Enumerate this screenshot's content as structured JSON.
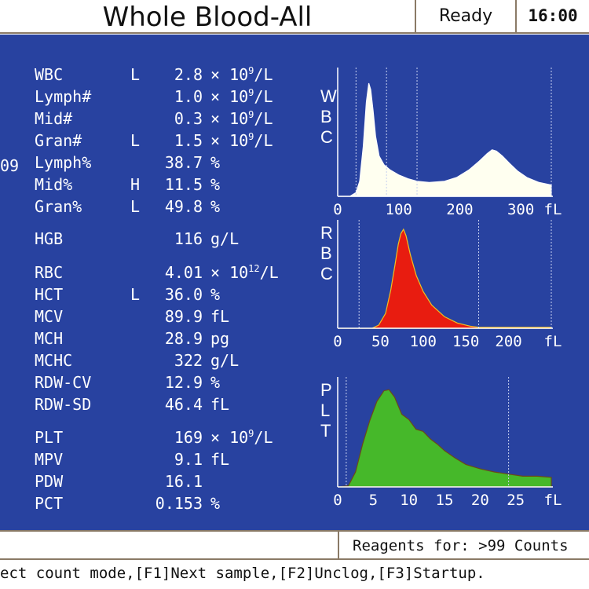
{
  "header": {
    "title": "Whole Blood-All",
    "status": "Ready",
    "time": "16:00"
  },
  "edge_text": "09",
  "parameters": [
    {
      "name": "WBC",
      "flag": "L",
      "value": "2.8",
      "unit_pre": "× 10",
      "unit_exp": "9",
      "unit_post": "/L"
    },
    {
      "name": "Lymph#",
      "flag": "",
      "value": "1.0",
      "unit_pre": "× 10",
      "unit_exp": "9",
      "unit_post": "/L"
    },
    {
      "name": "Mid#",
      "flag": "",
      "value": "0.3",
      "unit_pre": "× 10",
      "unit_exp": "9",
      "unit_post": "/L"
    },
    {
      "name": "Gran#",
      "flag": "L",
      "value": "1.5",
      "unit_pre": "× 10",
      "unit_exp": "9",
      "unit_post": "/L"
    },
    {
      "name": "Lymph%",
      "flag": "",
      "value": "38.7",
      "unit_pre": "%",
      "unit_exp": "",
      "unit_post": ""
    },
    {
      "name": "Mid%",
      "flag": "H",
      "value": "11.5",
      "unit_pre": "%",
      "unit_exp": "",
      "unit_post": ""
    },
    {
      "name": "Gran%",
      "flag": "L",
      "value": "49.8",
      "unit_pre": "%",
      "unit_exp": "",
      "unit_post": ""
    },
    {
      "name": "HGB",
      "flag": "",
      "value": "116",
      "unit_pre": "g/L",
      "unit_exp": "",
      "unit_post": ""
    },
    {
      "name": "RBC",
      "flag": "",
      "value": "4.01",
      "unit_pre": "× 10",
      "unit_exp": "12",
      "unit_post": "/L"
    },
    {
      "name": "HCT",
      "flag": "L",
      "value": "36.0",
      "unit_pre": "%",
      "unit_exp": "",
      "unit_post": ""
    },
    {
      "name": "MCV",
      "flag": "",
      "value": "89.9",
      "unit_pre": "fL",
      "unit_exp": "",
      "unit_post": ""
    },
    {
      "name": "MCH",
      "flag": "",
      "value": "28.9",
      "unit_pre": "pg",
      "unit_exp": "",
      "unit_post": ""
    },
    {
      "name": "MCHC",
      "flag": "",
      "value": "322",
      "unit_pre": "g/L",
      "unit_exp": "",
      "unit_post": ""
    },
    {
      "name": "RDW-CV",
      "flag": "",
      "value": "12.9",
      "unit_pre": "%",
      "unit_exp": "",
      "unit_post": ""
    },
    {
      "name": "RDW-SD",
      "flag": "",
      "value": "46.4",
      "unit_pre": "fL",
      "unit_exp": "",
      "unit_post": ""
    },
    {
      "name": "PLT",
      "flag": "",
      "value": "169",
      "unit_pre": "× 10",
      "unit_exp": "9",
      "unit_post": "/L"
    },
    {
      "name": "MPV",
      "flag": "",
      "value": "9.1",
      "unit_pre": "fL",
      "unit_exp": "",
      "unit_post": ""
    },
    {
      "name": "PDW",
      "flag": "",
      "value": "16.1",
      "unit_pre": "",
      "unit_exp": "",
      "unit_post": ""
    },
    {
      "name": "PCT",
      "flag": "",
      "value": "0.153",
      "unit_pre": "%",
      "unit_exp": "",
      "unit_post": ""
    }
  ],
  "histograms": [
    {
      "id": "wbc",
      "label": "WBC",
      "fill": "#fffff0",
      "stroke": "#ffffff",
      "xmax": 350,
      "ticks": [
        "0",
        "100",
        "200",
        "300"
      ],
      "tick_values": [
        0,
        100,
        200,
        300
      ],
      "unit": "fL",
      "markers": [
        30,
        80,
        130,
        350
      ],
      "curve": [
        [
          0,
          0
        ],
        [
          20,
          0
        ],
        [
          30,
          3
        ],
        [
          36,
          12
        ],
        [
          42,
          40
        ],
        [
          47,
          75
        ],
        [
          51,
          90
        ],
        [
          54,
          85
        ],
        [
          58,
          68
        ],
        [
          62,
          48
        ],
        [
          68,
          32
        ],
        [
          76,
          25
        ],
        [
          86,
          21
        ],
        [
          100,
          17
        ],
        [
          115,
          14
        ],
        [
          130,
          12
        ],
        [
          150,
          11
        ],
        [
          175,
          12
        ],
        [
          195,
          15
        ],
        [
          215,
          21
        ],
        [
          232,
          28
        ],
        [
          245,
          34
        ],
        [
          253,
          37
        ],
        [
          260,
          36
        ],
        [
          270,
          32
        ],
        [
          282,
          26
        ],
        [
          295,
          20
        ],
        [
          310,
          15
        ],
        [
          330,
          11
        ],
        [
          350,
          9
        ]
      ]
    },
    {
      "id": "rbc",
      "label": "RBC",
      "fill": "#e81c10",
      "stroke": "#f0c020",
      "xmax": 250,
      "ticks": [
        "0",
        "50",
        "100",
        "150",
        "200"
      ],
      "tick_values": [
        0,
        50,
        100,
        150,
        200
      ],
      "unit": "fL",
      "markers": [
        25,
        165,
        250
      ],
      "curve": [
        [
          0,
          0
        ],
        [
          40,
          0
        ],
        [
          48,
          3
        ],
        [
          56,
          14
        ],
        [
          62,
          36
        ],
        [
          67,
          60
        ],
        [
          71,
          80
        ],
        [
          74,
          90
        ],
        [
          77,
          94
        ],
        [
          80,
          88
        ],
        [
          85,
          70
        ],
        [
          92,
          50
        ],
        [
          100,
          35
        ],
        [
          110,
          22
        ],
        [
          125,
          11
        ],
        [
          140,
          5
        ],
        [
          155,
          2
        ],
        [
          165,
          1
        ],
        [
          250,
          1
        ]
      ]
    },
    {
      "id": "plt",
      "label": "PLT",
      "fill": "#46b82a",
      "stroke": "#6b4a18",
      "xmax": 30,
      "ticks": [
        "0",
        "5",
        "10",
        "15",
        "20",
        "25"
      ],
      "tick_values": [
        0,
        5,
        10,
        15,
        20,
        25
      ],
      "unit": "fL",
      "markers": [
        1.2,
        24
      ],
      "curve": [
        [
          0,
          0
        ],
        [
          1.5,
          1
        ],
        [
          2.5,
          14
        ],
        [
          3.5,
          40
        ],
        [
          4.5,
          62
        ],
        [
          5.5,
          80
        ],
        [
          6.5,
          90
        ],
        [
          7.2,
          91
        ],
        [
          8,
          84
        ],
        [
          9,
          68
        ],
        [
          10,
          63
        ],
        [
          11,
          54
        ],
        [
          12,
          52
        ],
        [
          13,
          45
        ],
        [
          14,
          40
        ],
        [
          15,
          34
        ],
        [
          16.5,
          27
        ],
        [
          18,
          21
        ],
        [
          20,
          17
        ],
        [
          22,
          14
        ],
        [
          24,
          12
        ],
        [
          26,
          10
        ],
        [
          28,
          10
        ],
        [
          30,
          9
        ]
      ]
    }
  ],
  "footer": {
    "reagent_text": "Reagents for: >99 Counts",
    "hint_text": "ect count mode,[F1]Next sample,[F2]Unclog,[F3]Startup."
  },
  "colors": {
    "panel": "#2842a0",
    "text": "#ffffff",
    "border": "#8a7a66"
  }
}
